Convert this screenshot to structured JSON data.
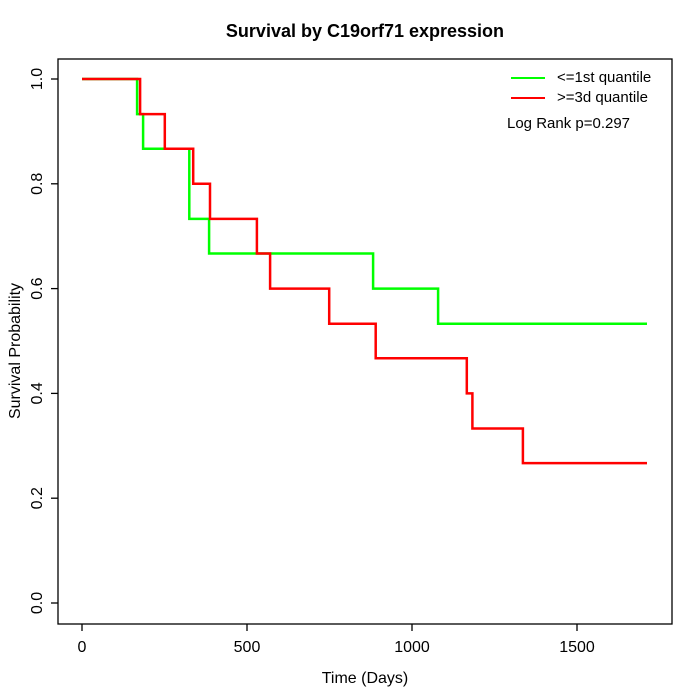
{
  "chart_data": {
    "type": "line",
    "subtype": "kaplan-meier-step",
    "title": "Survival by C19orf71 expression",
    "xlabel": "Time (Days)",
    "ylabel": "Survival Probability",
    "xlim": [
      0,
      1788
    ],
    "ylim": [
      0.0,
      1.04
    ],
    "x_ticks": [
      0,
      500,
      1000,
      1500
    ],
    "x_tick_labels": [
      "0",
      "500",
      "1000",
      "1500"
    ],
    "y_ticks": [
      0.0,
      0.2,
      0.4,
      0.6,
      0.8,
      1.0
    ],
    "y_tick_labels": [
      "0.0",
      "0.2",
      "0.4",
      "0.6",
      "0.8",
      "1.0"
    ],
    "grid": false,
    "legend_position": "top-right",
    "annotation": "Log Rank p=0.297",
    "axis_color": "#000000",
    "series": [
      {
        "name": "<=1st quantile",
        "color": "#00ff00",
        "points": [
          [
            0,
            1.0
          ],
          [
            167,
            0.933
          ],
          [
            185,
            0.867
          ],
          [
            325,
            0.733
          ],
          [
            385,
            0.667
          ],
          [
            882,
            0.6
          ],
          [
            1079,
            0.533
          ],
          [
            1712,
            0.533
          ]
        ]
      },
      {
        "name": ">=3d quantile",
        "color": "#ff0000",
        "points": [
          [
            0,
            1.0
          ],
          [
            176,
            0.933
          ],
          [
            251,
            0.867
          ],
          [
            337,
            0.8
          ],
          [
            388,
            0.733
          ],
          [
            530,
            0.667
          ],
          [
            570,
            0.6
          ],
          [
            749,
            0.533
          ],
          [
            890,
            0.467
          ],
          [
            1166,
            0.4
          ],
          [
            1183,
            0.333
          ],
          [
            1336,
            0.267
          ],
          [
            1712,
            0.267
          ]
        ]
      }
    ]
  }
}
